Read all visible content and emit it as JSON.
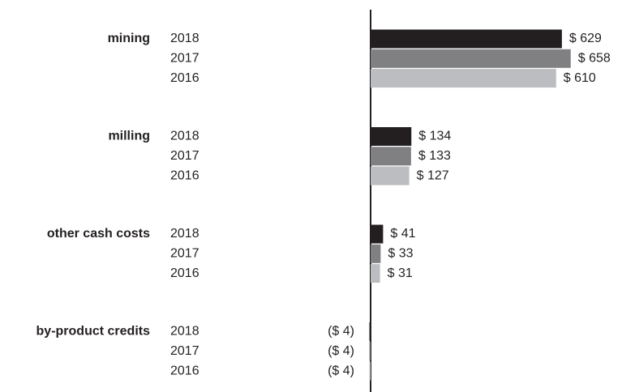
{
  "chart_data": {
    "type": "bar",
    "orientation": "horizontal",
    "categories": [
      "mining",
      "milling",
      "other cash costs",
      "by-product credits"
    ],
    "series": [
      {
        "name": "2018",
        "color": "#231f20",
        "values": [
          629,
          134,
          41,
          -4
        ],
        "value_labels": [
          "$ 629",
          "$ 134",
          "$ 41",
          "($ 4)"
        ]
      },
      {
        "name": "2017",
        "color": "#808083",
        "values": [
          658,
          133,
          33,
          -4
        ],
        "value_labels": [
          "$ 658",
          "$ 133",
          "$ 33",
          "($ 4)"
        ]
      },
      {
        "name": "2016",
        "color": "#bcbdc0",
        "values": [
          610,
          127,
          31,
          -4
        ],
        "value_labels": [
          "$ 610",
          "$ 127",
          "$ 31",
          "($ 4)"
        ]
      }
    ]
  }
}
